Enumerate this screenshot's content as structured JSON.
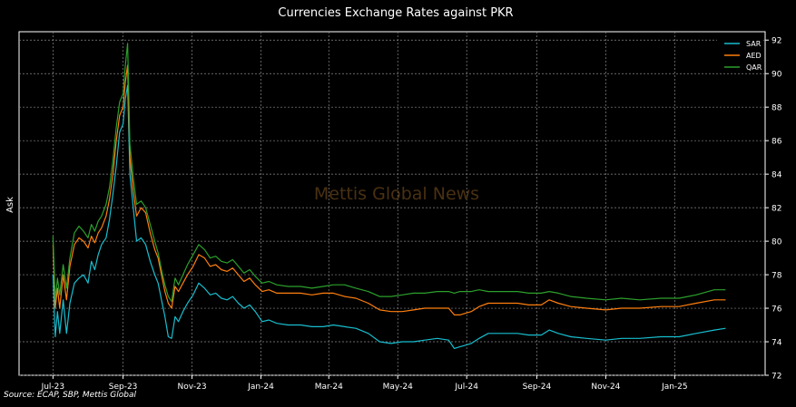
{
  "chart_data": {
    "type": "line",
    "title": "Currencies Exchange Rates against PKR",
    "ylabel": "Ask",
    "xlabel": "",
    "ylim": [
      72,
      92.5
    ],
    "xlim": [
      "2023-06-01",
      "2025-03-22"
    ],
    "y_axis_position": "right",
    "yticks": [
      72,
      74,
      76,
      78,
      80,
      82,
      84,
      86,
      88,
      90,
      92
    ],
    "xticks": [
      {
        "date": "2023-07-01",
        "label": "Jul-23"
      },
      {
        "date": "2023-09-01",
        "label": "Sep-23"
      },
      {
        "date": "2023-11-01",
        "label": "Nov-23"
      },
      {
        "date": "2024-01-01",
        "label": "Jan-24"
      },
      {
        "date": "2024-03-01",
        "label": "Mar-24"
      },
      {
        "date": "2024-05-01",
        "label": "May-24"
      },
      {
        "date": "2024-07-01",
        "label": "Jul-24"
      },
      {
        "date": "2024-09-01",
        "label": "Sep-24"
      },
      {
        "date": "2024-11-01",
        "label": "Nov-24"
      },
      {
        "date": "2025-01-01",
        "label": "Jan-25"
      }
    ],
    "grid": true,
    "legend_position": "top-right",
    "watermark": "Mettis Global News",
    "series": [
      {
        "name": "SAR",
        "color": "#17becf",
        "points": [
          [
            "2023-07-01",
            78.0
          ],
          [
            "2023-07-03",
            74.3
          ],
          [
            "2023-07-05",
            75.8
          ],
          [
            "2023-07-07",
            74.5
          ],
          [
            "2023-07-10",
            76.5
          ],
          [
            "2023-07-13",
            74.5
          ],
          [
            "2023-07-16",
            76.3
          ],
          [
            "2023-07-20",
            77.5
          ],
          [
            "2023-07-24",
            77.8
          ],
          [
            "2023-07-28",
            78.0
          ],
          [
            "2023-08-01",
            77.5
          ],
          [
            "2023-08-04",
            78.8
          ],
          [
            "2023-08-07",
            78.3
          ],
          [
            "2023-08-10",
            79.2
          ],
          [
            "2023-08-13",
            79.8
          ],
          [
            "2023-08-17",
            80.2
          ],
          [
            "2023-08-20",
            81.3
          ],
          [
            "2023-08-23",
            82.8
          ],
          [
            "2023-08-26",
            84.5
          ],
          [
            "2023-08-29",
            86.5
          ],
          [
            "2023-09-01",
            87.0
          ],
          [
            "2023-09-03",
            88.5
          ],
          [
            "2023-09-05",
            89.3
          ],
          [
            "2023-09-07",
            84.0
          ],
          [
            "2023-09-10",
            82.0
          ],
          [
            "2023-09-13",
            80.0
          ],
          [
            "2023-09-17",
            80.2
          ],
          [
            "2023-09-21",
            79.8
          ],
          [
            "2023-09-25",
            78.8
          ],
          [
            "2023-09-29",
            78.0
          ],
          [
            "2023-10-02",
            77.5
          ],
          [
            "2023-10-05",
            76.5
          ],
          [
            "2023-10-08",
            75.5
          ],
          [
            "2023-10-11",
            74.3
          ],
          [
            "2023-10-14",
            74.2
          ],
          [
            "2023-10-17",
            75.5
          ],
          [
            "2023-10-20",
            75.2
          ],
          [
            "2023-10-24",
            75.8
          ],
          [
            "2023-10-28",
            76.3
          ],
          [
            "2023-11-02",
            76.8
          ],
          [
            "2023-11-07",
            77.5
          ],
          [
            "2023-11-12",
            77.2
          ],
          [
            "2023-11-17",
            76.8
          ],
          [
            "2023-11-22",
            76.9
          ],
          [
            "2023-11-27",
            76.6
          ],
          [
            "2023-12-02",
            76.5
          ],
          [
            "2023-12-07",
            76.7
          ],
          [
            "2023-12-12",
            76.3
          ],
          [
            "2023-12-17",
            76.0
          ],
          [
            "2023-12-22",
            76.2
          ],
          [
            "2023-12-27",
            75.8
          ],
          [
            "2024-01-02",
            75.2
          ],
          [
            "2024-01-08",
            75.3
          ],
          [
            "2024-01-15",
            75.1
          ],
          [
            "2024-01-25",
            75.0
          ],
          [
            "2024-02-05",
            75.0
          ],
          [
            "2024-02-15",
            74.9
          ],
          [
            "2024-02-25",
            74.9
          ],
          [
            "2024-03-05",
            75.0
          ],
          [
            "2024-03-15",
            74.9
          ],
          [
            "2024-03-25",
            74.8
          ],
          [
            "2024-04-05",
            74.5
          ],
          [
            "2024-04-15",
            74.0
          ],
          [
            "2024-04-25",
            73.9
          ],
          [
            "2024-05-05",
            74.0
          ],
          [
            "2024-05-15",
            74.0
          ],
          [
            "2024-05-25",
            74.1
          ],
          [
            "2024-06-05",
            74.2
          ],
          [
            "2024-06-15",
            74.1
          ],
          [
            "2024-06-20",
            73.6
          ],
          [
            "2024-06-25",
            73.7
          ],
          [
            "2024-07-05",
            73.9
          ],
          [
            "2024-07-12",
            74.2
          ],
          [
            "2024-07-20",
            74.5
          ],
          [
            "2024-08-01",
            74.5
          ],
          [
            "2024-08-15",
            74.5
          ],
          [
            "2024-08-25",
            74.4
          ],
          [
            "2024-09-05",
            74.4
          ],
          [
            "2024-09-12",
            74.7
          ],
          [
            "2024-09-20",
            74.5
          ],
          [
            "2024-10-01",
            74.3
          ],
          [
            "2024-10-15",
            74.2
          ],
          [
            "2024-11-01",
            74.1
          ],
          [
            "2024-11-15",
            74.2
          ],
          [
            "2024-12-01",
            74.2
          ],
          [
            "2024-12-20",
            74.3
          ],
          [
            "2025-01-05",
            74.3
          ],
          [
            "2025-01-20",
            74.5
          ],
          [
            "2025-02-05",
            74.7
          ],
          [
            "2025-02-15",
            74.8
          ]
        ]
      },
      {
        "name": "AED",
        "color": "#ff7f0e",
        "points": [
          [
            "2023-07-01",
            79.8
          ],
          [
            "2023-07-03",
            76.0
          ],
          [
            "2023-07-05",
            77.2
          ],
          [
            "2023-07-07",
            76.0
          ],
          [
            "2023-07-10",
            78.0
          ],
          [
            "2023-07-13",
            76.5
          ],
          [
            "2023-07-16",
            78.5
          ],
          [
            "2023-07-20",
            79.8
          ],
          [
            "2023-07-24",
            80.2
          ],
          [
            "2023-07-28",
            80.0
          ],
          [
            "2023-08-01",
            79.6
          ],
          [
            "2023-08-04",
            80.3
          ],
          [
            "2023-08-07",
            79.9
          ],
          [
            "2023-08-10",
            80.5
          ],
          [
            "2023-08-13",
            80.8
          ],
          [
            "2023-08-17",
            81.5
          ],
          [
            "2023-08-20",
            82.5
          ],
          [
            "2023-08-23",
            84.0
          ],
          [
            "2023-08-26",
            86.0
          ],
          [
            "2023-08-29",
            87.5
          ],
          [
            "2023-09-01",
            88.0
          ],
          [
            "2023-09-03",
            89.5
          ],
          [
            "2023-09-05",
            90.5
          ],
          [
            "2023-09-07",
            85.0
          ],
          [
            "2023-09-10",
            83.0
          ],
          [
            "2023-09-13",
            81.5
          ],
          [
            "2023-09-17",
            82.0
          ],
          [
            "2023-09-21",
            81.7
          ],
          [
            "2023-09-25",
            80.5
          ],
          [
            "2023-09-29",
            79.5
          ],
          [
            "2023-10-02",
            79.0
          ],
          [
            "2023-10-05",
            78.0
          ],
          [
            "2023-10-08",
            77.0
          ],
          [
            "2023-10-11",
            76.3
          ],
          [
            "2023-10-14",
            76.0
          ],
          [
            "2023-10-17",
            77.3
          ],
          [
            "2023-10-20",
            77.0
          ],
          [
            "2023-10-24",
            77.5
          ],
          [
            "2023-10-28",
            78.0
          ],
          [
            "2023-11-02",
            78.5
          ],
          [
            "2023-11-07",
            79.2
          ],
          [
            "2023-11-12",
            79.0
          ],
          [
            "2023-11-17",
            78.5
          ],
          [
            "2023-11-22",
            78.6
          ],
          [
            "2023-11-27",
            78.3
          ],
          [
            "2023-12-02",
            78.2
          ],
          [
            "2023-12-07",
            78.4
          ],
          [
            "2023-12-12",
            78.0
          ],
          [
            "2023-12-17",
            77.6
          ],
          [
            "2023-12-22",
            77.8
          ],
          [
            "2023-12-27",
            77.4
          ],
          [
            "2024-01-02",
            77.0
          ],
          [
            "2024-01-08",
            77.1
          ],
          [
            "2024-01-15",
            76.9
          ],
          [
            "2024-01-25",
            76.9
          ],
          [
            "2024-02-05",
            76.9
          ],
          [
            "2024-02-15",
            76.8
          ],
          [
            "2024-02-25",
            76.9
          ],
          [
            "2024-03-05",
            76.9
          ],
          [
            "2024-03-15",
            76.7
          ],
          [
            "2024-03-25",
            76.6
          ],
          [
            "2024-04-05",
            76.3
          ],
          [
            "2024-04-15",
            75.9
          ],
          [
            "2024-04-25",
            75.8
          ],
          [
            "2024-05-05",
            75.8
          ],
          [
            "2024-05-15",
            75.9
          ],
          [
            "2024-05-25",
            76.0
          ],
          [
            "2024-06-05",
            76.0
          ],
          [
            "2024-06-15",
            76.0
          ],
          [
            "2024-06-20",
            75.6
          ],
          [
            "2024-06-25",
            75.6
          ],
          [
            "2024-07-05",
            75.8
          ],
          [
            "2024-07-12",
            76.1
          ],
          [
            "2024-07-20",
            76.3
          ],
          [
            "2024-08-01",
            76.3
          ],
          [
            "2024-08-15",
            76.3
          ],
          [
            "2024-08-25",
            76.2
          ],
          [
            "2024-09-05",
            76.2
          ],
          [
            "2024-09-12",
            76.5
          ],
          [
            "2024-09-20",
            76.3
          ],
          [
            "2024-10-01",
            76.1
          ],
          [
            "2024-10-15",
            76.0
          ],
          [
            "2024-11-01",
            75.9
          ],
          [
            "2024-11-15",
            76.0
          ],
          [
            "2024-12-01",
            76.0
          ],
          [
            "2024-12-20",
            76.1
          ],
          [
            "2025-01-05",
            76.1
          ],
          [
            "2025-01-20",
            76.3
          ],
          [
            "2025-02-05",
            76.5
          ],
          [
            "2025-02-15",
            76.5
          ]
        ]
      },
      {
        "name": "QAR",
        "color": "#2ca02c",
        "points": [
          [
            "2023-07-01",
            80.3
          ],
          [
            "2023-07-03",
            76.5
          ],
          [
            "2023-07-05",
            77.8
          ],
          [
            "2023-07-07",
            76.8
          ],
          [
            "2023-07-10",
            78.6
          ],
          [
            "2023-07-13",
            77.2
          ],
          [
            "2023-07-16",
            79.0
          ],
          [
            "2023-07-20",
            80.5
          ],
          [
            "2023-07-24",
            80.9
          ],
          [
            "2023-07-28",
            80.6
          ],
          [
            "2023-08-01",
            80.2
          ],
          [
            "2023-08-04",
            81.0
          ],
          [
            "2023-08-07",
            80.6
          ],
          [
            "2023-08-10",
            81.2
          ],
          [
            "2023-08-13",
            81.5
          ],
          [
            "2023-08-17",
            82.2
          ],
          [
            "2023-08-20",
            83.2
          ],
          [
            "2023-08-23",
            84.8
          ],
          [
            "2023-08-26",
            86.8
          ],
          [
            "2023-08-29",
            88.3
          ],
          [
            "2023-09-01",
            88.8
          ],
          [
            "2023-09-03",
            90.5
          ],
          [
            "2023-09-05",
            91.8
          ],
          [
            "2023-09-07",
            85.8
          ],
          [
            "2023-09-10",
            83.8
          ],
          [
            "2023-09-13",
            82.2
          ],
          [
            "2023-09-17",
            82.4
          ],
          [
            "2023-09-21",
            82.0
          ],
          [
            "2023-09-25",
            81.0
          ],
          [
            "2023-09-29",
            80.0
          ],
          [
            "2023-10-02",
            79.3
          ],
          [
            "2023-10-05",
            78.3
          ],
          [
            "2023-10-08",
            77.4
          ],
          [
            "2023-10-11",
            76.7
          ],
          [
            "2023-10-14",
            76.4
          ],
          [
            "2023-10-17",
            77.8
          ],
          [
            "2023-10-20",
            77.4
          ],
          [
            "2023-10-24",
            78.0
          ],
          [
            "2023-10-28",
            78.6
          ],
          [
            "2023-11-02",
            79.2
          ],
          [
            "2023-11-07",
            79.8
          ],
          [
            "2023-11-12",
            79.5
          ],
          [
            "2023-11-17",
            79.0
          ],
          [
            "2023-11-22",
            79.1
          ],
          [
            "2023-11-27",
            78.8
          ],
          [
            "2023-12-02",
            78.7
          ],
          [
            "2023-12-07",
            78.9
          ],
          [
            "2023-12-12",
            78.5
          ],
          [
            "2023-12-17",
            78.1
          ],
          [
            "2023-12-22",
            78.3
          ],
          [
            "2023-12-27",
            77.9
          ],
          [
            "2024-01-02",
            77.5
          ],
          [
            "2024-01-08",
            77.6
          ],
          [
            "2024-01-15",
            77.4
          ],
          [
            "2024-01-25",
            77.3
          ],
          [
            "2024-02-05",
            77.3
          ],
          [
            "2024-02-15",
            77.2
          ],
          [
            "2024-02-25",
            77.3
          ],
          [
            "2024-03-05",
            77.4
          ],
          [
            "2024-03-15",
            77.4
          ],
          [
            "2024-03-25",
            77.2
          ],
          [
            "2024-04-05",
            77.0
          ],
          [
            "2024-04-15",
            76.7
          ],
          [
            "2024-04-25",
            76.7
          ],
          [
            "2024-05-05",
            76.8
          ],
          [
            "2024-05-15",
            76.9
          ],
          [
            "2024-05-25",
            76.9
          ],
          [
            "2024-06-05",
            77.0
          ],
          [
            "2024-06-15",
            77.0
          ],
          [
            "2024-06-20",
            76.9
          ],
          [
            "2024-06-25",
            77.0
          ],
          [
            "2024-07-05",
            77.0
          ],
          [
            "2024-07-12",
            77.1
          ],
          [
            "2024-07-20",
            77.0
          ],
          [
            "2024-08-01",
            77.0
          ],
          [
            "2024-08-15",
            77.0
          ],
          [
            "2024-08-25",
            76.9
          ],
          [
            "2024-09-05",
            76.9
          ],
          [
            "2024-09-12",
            77.0
          ],
          [
            "2024-09-20",
            76.9
          ],
          [
            "2024-10-01",
            76.7
          ],
          [
            "2024-10-15",
            76.6
          ],
          [
            "2024-11-01",
            76.5
          ],
          [
            "2024-11-15",
            76.6
          ],
          [
            "2024-12-01",
            76.5
          ],
          [
            "2024-12-20",
            76.6
          ],
          [
            "2025-01-05",
            76.6
          ],
          [
            "2025-01-20",
            76.8
          ],
          [
            "2025-02-05",
            77.1
          ],
          [
            "2025-02-15",
            77.1
          ]
        ]
      }
    ],
    "source": "Source: ECAP, SBP, Mettis Global"
  }
}
